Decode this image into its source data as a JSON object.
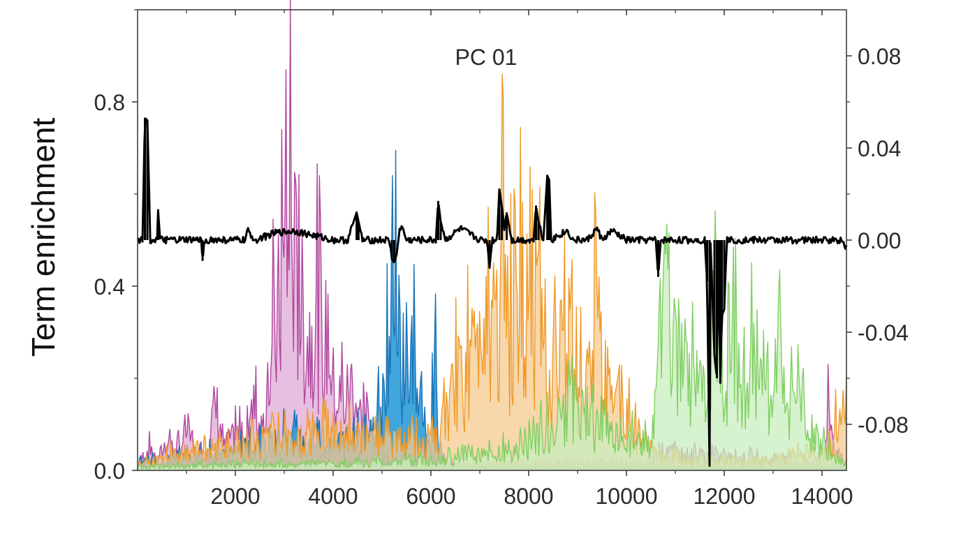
{
  "chart_data": {
    "type": "area",
    "title": "PC 01",
    "ylabel": "Term enrichment",
    "xlim": [
      0,
      14500
    ],
    "ylim": [
      0,
      1.0
    ],
    "y2lim": [
      -0.1,
      0.1
    ],
    "x_ticks": [
      2000,
      4000,
      6000,
      8000,
      10000,
      12000,
      14000
    ],
    "x_tick_labels": [
      "2000",
      "4000",
      "6000",
      "8000",
      "10000",
      "12000",
      "14000"
    ],
    "y_ticks": [
      0.0,
      0.4,
      0.8
    ],
    "y_tick_labels": [
      "0.0",
      "0.4",
      "0.8"
    ],
    "y2_ticks": [
      0.08,
      0.04,
      0.0,
      -0.04,
      -0.08
    ],
    "y2_tick_labels": [
      "0.08",
      "0.04",
      "0.00",
      "-0.04",
      "-0.08"
    ],
    "grid": false,
    "colors": {
      "purple": "#b0479e",
      "purple_fill": "#dfa9d6",
      "blue": "#1f97d6",
      "blue_dark": "#1a73b8",
      "orange": "#ee9b2b",
      "orange_fill": "#f6c98f",
      "green": "#7fcf62",
      "green_fill": "#c9eebd",
      "black": "#000000"
    },
    "series": [
      {
        "role": "term-enrichment",
        "color_key": "purple",
        "x": [
          0,
          200,
          400,
          600,
          800,
          1000,
          1200,
          1400,
          1600,
          1800,
          2000,
          2200,
          2400,
          2600,
          2700,
          2800,
          2900,
          3000,
          3100,
          3150,
          3200,
          3300,
          3400,
          3500,
          3600,
          3700,
          3800,
          3900,
          4000,
          4200,
          4400,
          4600,
          4800,
          5000,
          5200,
          6000,
          10500,
          10600,
          14000,
          14150,
          14300,
          14500
        ],
        "y": [
          0.02,
          0.07,
          0.03,
          0.1,
          0.05,
          0.14,
          0.05,
          0.08,
          0.22,
          0.06,
          0.12,
          0.1,
          0.2,
          0.12,
          0.34,
          0.42,
          0.55,
          0.68,
          0.8,
          0.82,
          0.7,
          0.6,
          0.5,
          0.44,
          0.55,
          0.48,
          0.36,
          0.5,
          0.28,
          0.22,
          0.3,
          0.15,
          0.12,
          0.06,
          0.03,
          0.02,
          0.02,
          0.06,
          0.02,
          0.2,
          0.05,
          0.02
        ]
      },
      {
        "role": "term-enrichment",
        "color_key": "blue",
        "x": [
          0,
          1000,
          2000,
          3000,
          4000,
          4800,
          4950,
          5050,
          5150,
          5220,
          5300,
          5400,
          5500,
          5600,
          5700,
          5800,
          5900,
          6000,
          6100,
          6150,
          6300,
          6500,
          7000,
          14500
        ],
        "y": [
          0.03,
          0.04,
          0.06,
          0.1,
          0.09,
          0.12,
          0.18,
          0.26,
          0.42,
          0.72,
          0.5,
          0.4,
          0.42,
          0.38,
          0.3,
          0.18,
          0.12,
          0.08,
          0.5,
          0.06,
          0.02,
          0.01,
          0.01,
          0.01
        ]
      },
      {
        "role": "term-enrichment",
        "color_key": "orange",
        "x": [
          0,
          1000,
          2000,
          3000,
          4000,
          5000,
          6000,
          6200,
          6500,
          6800,
          7000,
          7200,
          7300,
          7400,
          7500,
          7600,
          7800,
          8000,
          8200,
          8400,
          8600,
          8800,
          9000,
          9200,
          9450,
          9500,
          9700,
          10000,
          10300,
          10600,
          11000,
          12000,
          13000,
          14000,
          14500
        ],
        "y": [
          0.02,
          0.06,
          0.08,
          0.1,
          0.12,
          0.1,
          0.08,
          0.12,
          0.28,
          0.35,
          0.5,
          0.6,
          0.45,
          0.55,
          0.7,
          0.42,
          0.55,
          0.48,
          0.5,
          0.3,
          0.38,
          0.45,
          0.3,
          0.2,
          0.72,
          0.18,
          0.25,
          0.16,
          0.1,
          0.05,
          0.04,
          0.03,
          0.03,
          0.06,
          0.2
        ]
      },
      {
        "role": "term-enrichment",
        "color_key": "green",
        "x": [
          0,
          2000,
          4000,
          6000,
          7000,
          8000,
          8500,
          9000,
          9500,
          10000,
          10500,
          10700,
          10800,
          10900,
          11000,
          11200,
          11400,
          11600,
          11800,
          11900,
          12000,
          12200,
          12400,
          12600,
          12800,
          13000,
          13100,
          13300,
          13500,
          13700,
          14000,
          14300,
          14500
        ],
        "y": [
          0.01,
          0.02,
          0.02,
          0.03,
          0.05,
          0.08,
          0.15,
          0.2,
          0.12,
          0.1,
          0.08,
          0.35,
          0.58,
          0.3,
          0.45,
          0.28,
          0.4,
          0.2,
          0.56,
          0.38,
          0.3,
          0.42,
          0.22,
          0.45,
          0.3,
          0.18,
          0.45,
          0.22,
          0.28,
          0.15,
          0.08,
          0.04,
          0.02
        ]
      },
      {
        "role": "pc-loading",
        "color_key": "black",
        "axis": "right",
        "x": [
          0,
          100,
          150,
          200,
          260,
          320,
          400,
          420,
          460,
          600,
          900,
          1200,
          1300,
          1330,
          1370,
          1450,
          1700,
          2000,
          2200,
          2250,
          2400,
          2800,
          3200,
          3600,
          4000,
          4300,
          4480,
          4520,
          4600,
          4800,
          5000,
          5150,
          5200,
          5250,
          5300,
          5350,
          5400,
          5500,
          5700,
          5900,
          6100,
          6150,
          6200,
          6300,
          6600,
          7000,
          7150,
          7200,
          7250,
          7350,
          7400,
          7450,
          7500,
          7550,
          7650,
          7900,
          8100,
          8150,
          8200,
          8300,
          8380,
          8420,
          8460,
          8600,
          8800,
          8900,
          9000,
          9200,
          9400,
          9500,
          9700,
          10000,
          10400,
          10600,
          10650,
          10700,
          10800,
          11000,
          11400,
          11600,
          11650,
          11700,
          11720,
          11800,
          11850,
          11880,
          11920,
          11950,
          12000,
          12050,
          12200,
          12600,
          13000,
          13400,
          13800,
          14200,
          14400,
          14500
        ],
        "y": [
          0.0,
          0.0,
          0.053,
          0.052,
          0.0,
          0.0,
          0.0,
          0.013,
          0.0,
          0.0,
          0.0,
          0.0,
          0.0,
          -0.009,
          0.0,
          0.0,
          0.0,
          0.0,
          0.0,
          0.004,
          0.0,
          0.003,
          0.004,
          0.002,
          0.0,
          0.0,
          0.012,
          0.008,
          0.0,
          0.0,
          0.0,
          0.0,
          -0.008,
          -0.01,
          -0.006,
          0.004,
          0.006,
          0.0,
          0.0,
          0.0,
          0.0,
          0.017,
          0.008,
          0.0,
          0.005,
          0.0,
          0.0,
          -0.012,
          0.0,
          0.0,
          0.022,
          0.015,
          0.005,
          0.012,
          0.0,
          0.0,
          0.0,
          0.015,
          0.008,
          0.0,
          0.028,
          0.026,
          0.0,
          0.002,
          0.004,
          0.0,
          0.0,
          0.0,
          0.005,
          0.0,
          0.004,
          0.0,
          0.0,
          0.0,
          -0.016,
          0.0,
          0.0,
          0.0,
          0.0,
          0.0,
          -0.018,
          -0.098,
          0.0,
          -0.05,
          -0.06,
          0.0,
          -0.062,
          -0.033,
          -0.03,
          0.0,
          0.0,
          0.0,
          0.0,
          0.0,
          0.0,
          0.0,
          0.0,
          -0.003
        ]
      }
    ]
  }
}
